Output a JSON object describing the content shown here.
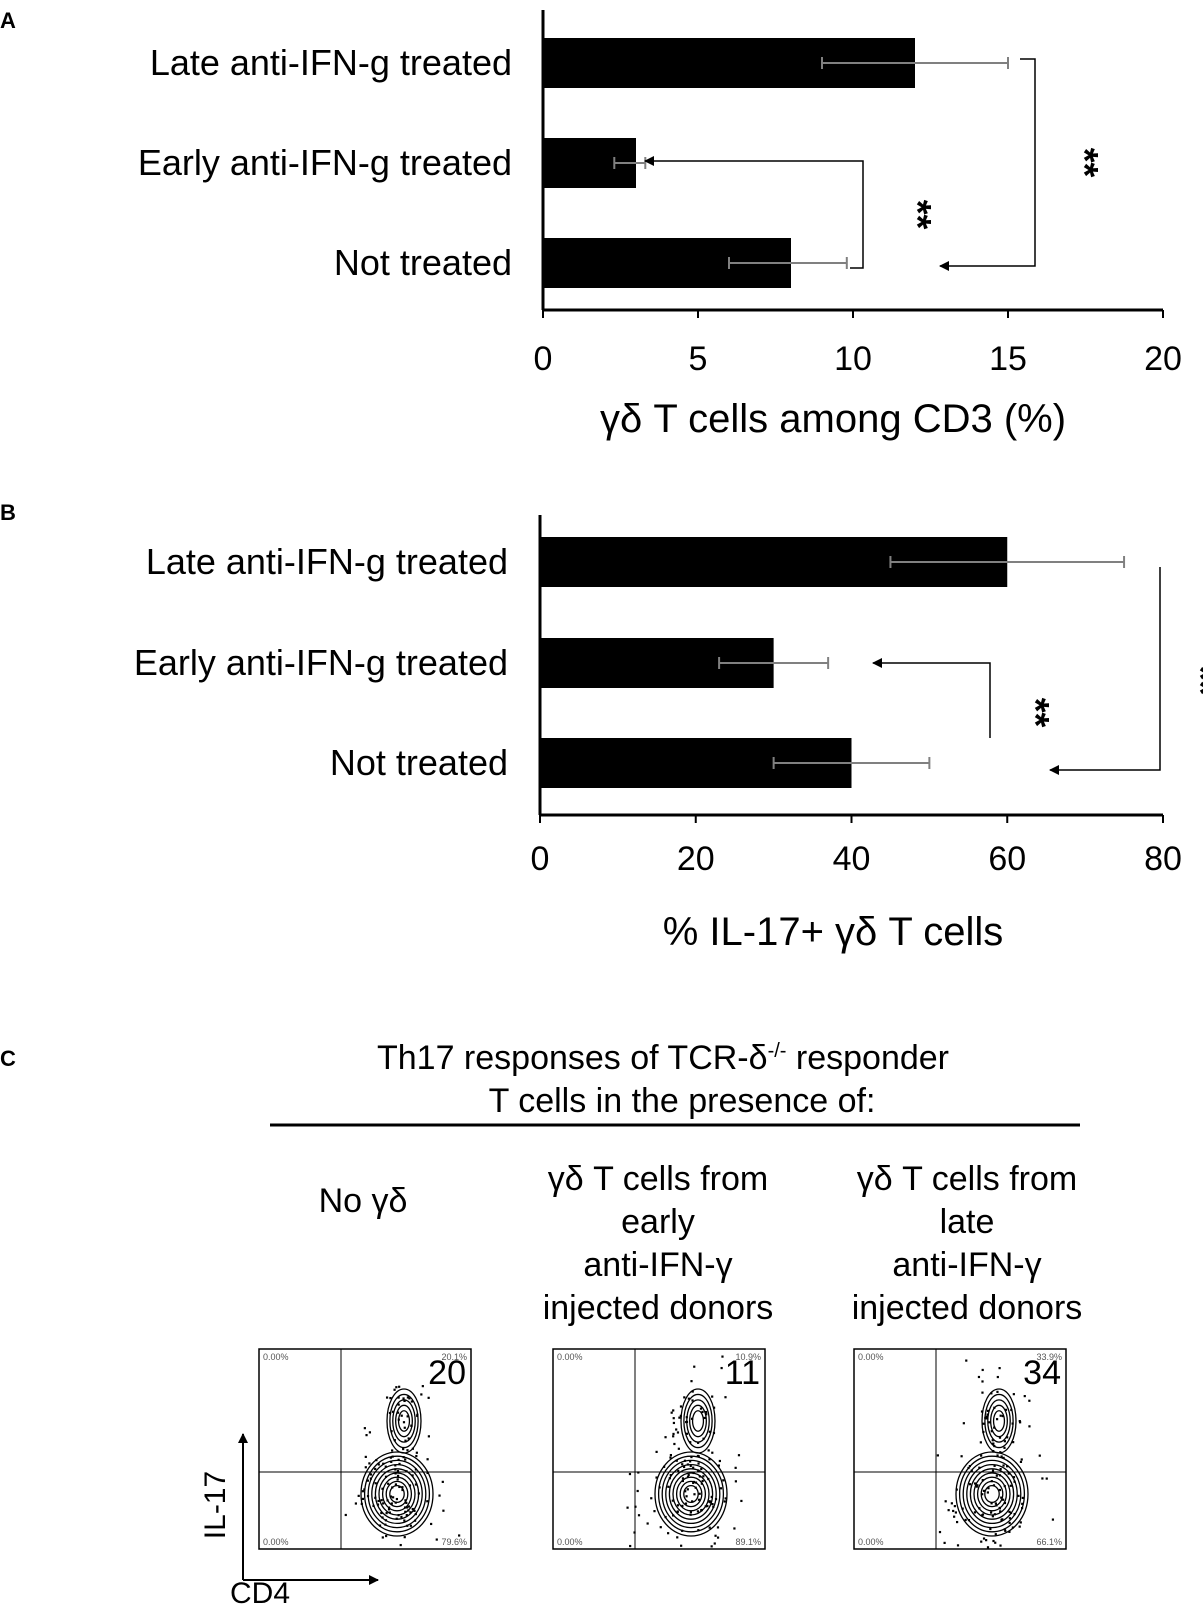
{
  "chart_data": [
    {
      "id": "A",
      "type": "bar",
      "orientation": "horizontal",
      "panel_letter": "A",
      "categories": [
        "Late anti-IFN-g treated",
        "Early anti-IFN-g treated",
        "Not treated"
      ],
      "values": [
        12,
        3,
        8
      ],
      "error_low": [
        9,
        2.3,
        6
      ],
      "error_high": [
        15,
        3.3,
        9.8
      ],
      "xlim": [
        0,
        20
      ],
      "ticks": [
        0,
        5,
        10,
        15,
        20
      ],
      "tick_labels": [
        "0",
        "5",
        "10",
        "15",
        "20"
      ],
      "xlabel": "γδ T cells among CD3 (%)",
      "significance": [
        {
          "from": "Not treated",
          "to": "Early anti-IFN-g treated",
          "label": "**"
        },
        {
          "from": "Late anti-IFN-g treated",
          "to": "Not treated",
          "label": "**"
        }
      ]
    },
    {
      "id": "B",
      "type": "bar",
      "orientation": "horizontal",
      "panel_letter": "B",
      "categories": [
        "Late anti-IFN-g treated",
        "Early anti-IFN-g treated",
        "Not treated"
      ],
      "values": [
        60,
        30,
        40
      ],
      "error_low": [
        45,
        23,
        30
      ],
      "error_high": [
        75,
        37,
        50
      ],
      "xlim": [
        0,
        80
      ],
      "ticks": [
        0,
        20,
        40,
        60,
        80
      ],
      "tick_labels": [
        "0",
        "20",
        "40",
        "60",
        "80"
      ],
      "xlabel": "% IL-17+ γδ T cells",
      "significance": [
        {
          "from": "Not treated",
          "to": "Early anti-IFN-g treated",
          "label": "**"
        },
        {
          "from": "Late anti-IFN-g treated",
          "to": "Not treated",
          "label": "**"
        }
      ]
    }
  ],
  "panel_c": {
    "letter": "C",
    "title_line1": "Th17 responses of TCR-δ",
    "title_sup": "-/-",
    "title_line1_end": " responder",
    "title_line2": "T cells in the presence of:",
    "x_axis": "CD4",
    "y_axis": "IL-17",
    "plots": [
      {
        "header": [
          "No γδ"
        ],
        "value": "20",
        "q_ul": "0.00%",
        "q_ur": "20.1%",
        "q_ll": "0.00%",
        "q_lr": "79.6%"
      },
      {
        "header": [
          "γδ T cells from",
          "early",
          "anti-IFN-γ",
          "injected donors"
        ],
        "value": "11",
        "q_ul": "0.00%",
        "q_ur": "10.9%",
        "q_ll": "0.00%",
        "q_lr": "89.1%"
      },
      {
        "header": [
          "γδ T cells from",
          "late",
          "anti-IFN-γ",
          "injected donors"
        ],
        "value": "34",
        "q_ul": "0.00%",
        "q_ur": "33.9%",
        "q_ll": "0.00%",
        "q_lr": "66.1%"
      }
    ]
  }
}
